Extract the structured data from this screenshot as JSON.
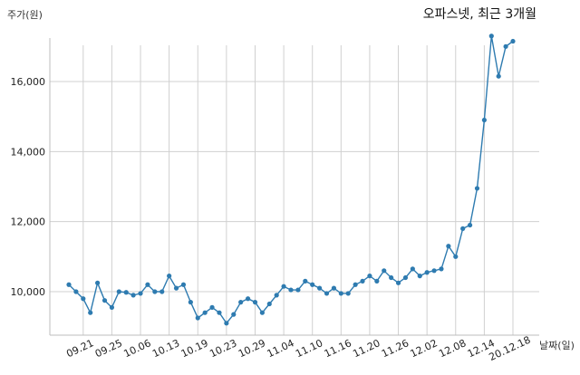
{
  "chart_data": {
    "type": "line",
    "title": "오파스넷, 최근 3개월",
    "ylabel": "주가(원)",
    "xlabel": "날짜(일)",
    "ylim": [
      8700,
      17600
    ],
    "yticks": [
      10000,
      12000,
      14000,
      16000
    ],
    "ytick_labels": [
      "10,000",
      "12,000",
      "14,000",
      "16,000"
    ],
    "x_tick_labels": [
      "09.21",
      "09.25",
      "10.06",
      "10.13",
      "10.19",
      "10.23",
      "10.29",
      "11.04",
      "11.10",
      "11.16",
      "11.20",
      "11.26",
      "12.02",
      "12.08",
      "12.14",
      "20.12.18"
    ],
    "x_tick_indices": [
      2,
      6,
      10,
      14,
      18,
      22,
      26,
      30,
      34,
      38,
      42,
      46,
      50,
      54,
      58,
      62
    ],
    "grid": true,
    "line_color": "#2e7bb0",
    "series": [
      {
        "values": [
          10200,
          10000,
          9800,
          9400,
          10250,
          9750,
          9550,
          10000,
          9980,
          9900,
          9950,
          10200,
          10000,
          10000,
          10450,
          10100,
          10200,
          9700,
          9250,
          9400,
          9550,
          9400,
          9100,
          9350,
          9700,
          9800,
          9700,
          9400,
          9650,
          9900,
          10150,
          10050,
          10050,
          10300,
          10200,
          10100,
          9950,
          10100,
          9950,
          9950,
          10200,
          10300,
          10450,
          10300,
          10600,
          10400,
          10250,
          10400,
          10650,
          10450,
          10550,
          10600,
          10650,
          11300,
          11000,
          11800,
          11900,
          12950,
          14900,
          17300,
          16150,
          17000,
          17150
        ]
      }
    ]
  }
}
